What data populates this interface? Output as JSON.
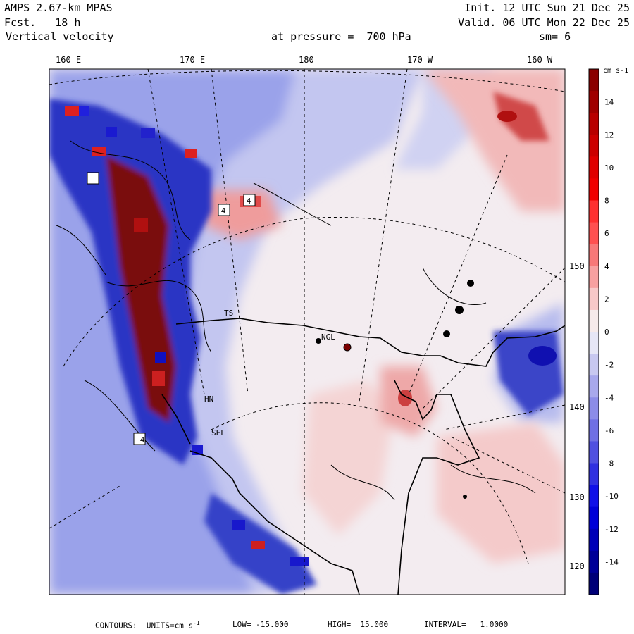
{
  "header": {
    "model": "AMPS 2.67-km MPAS",
    "forecast": "Fcst.   18 h",
    "field": "Vertical velocity",
    "level": "at pressure =  700 hPa",
    "init": "Init. 12 UTC Sun 21 Dec 25",
    "valid": "Valid. 06 UTC Mon 22 Dec 25",
    "smoothing": "sm= 6"
  },
  "map": {
    "top_longitude_labels": [
      "160 E",
      "170 E",
      "180",
      "170 W",
      "160 W"
    ],
    "right_longitude_labels": [
      "150 W",
      "140 W",
      "130 W",
      "120 W"
    ],
    "station_labels": [
      "NGL",
      "TS",
      "HN",
      "SEL"
    ],
    "box_marker_label": "4",
    "colors": {
      "positive": "#ee4444",
      "negative": "#4455dd",
      "near_zero": "#f4ecec",
      "coast": "#000000"
    }
  },
  "colorbar": {
    "units": "cm s-1",
    "labels": [
      "14",
      "12",
      "10",
      "8",
      "6",
      "4",
      "2",
      "0",
      "-2",
      "-4",
      "-6",
      "-8",
      "-10",
      "-12",
      "-14"
    ],
    "colors": [
      "#8b0000",
      "#a00000",
      "#b80000",
      "#cc0000",
      "#e00000",
      "#f00000",
      "#ff3030",
      "#ff5050",
      "#f87878",
      "#f8a0a0",
      "#f8c8c8",
      "#f6eaea",
      "#e6e6f6",
      "#c8c8f0",
      "#a8a8ec",
      "#8c8ce8",
      "#7070e4",
      "#5050e0",
      "#3030e0",
      "#1010e8",
      "#0000d8",
      "#0000b8",
      "#000098",
      "#000078"
    ]
  },
  "footer": {
    "contours": "CONTOURS:  UNITS=cm s",
    "units_exp": "-1",
    "low": "LOW= -15.000",
    "high": "HIGH=  15.000",
    "interval": "INTERVAL=   1.0000"
  }
}
